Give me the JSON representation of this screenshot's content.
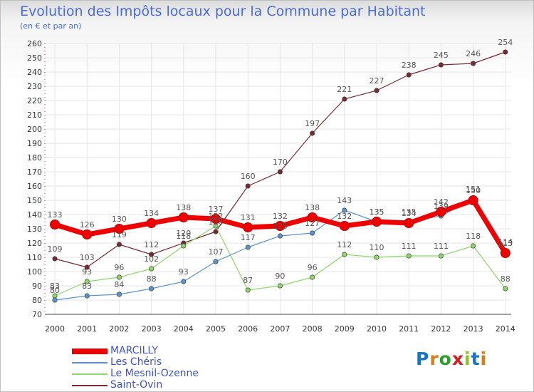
{
  "header": {
    "title": "Evolution des Impôts locaux pour la Commune par Habitant",
    "subtitle": "(en € et par an)"
  },
  "colors": {
    "title": "#4a6cd6",
    "grid": "#e6e6e6",
    "axis_text": "#333333",
    "value_text": "#555555"
  },
  "logo": {
    "letters": [
      "P",
      "r",
      "o",
      "x",
      "i",
      "t",
      "i"
    ],
    "colors": [
      "#1a74c6",
      "#e07b14",
      "#2c9f2c",
      "#d61f1f",
      "#8fbf2a",
      "#1a74c6",
      "#e07b14"
    ]
  },
  "chart_data": {
    "type": "line",
    "title": "Evolution des Impôts locaux pour la Commune par Habitant",
    "subtitle": "(en € et par an)",
    "x": [
      "2000",
      "2001",
      "2002",
      "2003",
      "2004",
      "2005",
      "2006",
      "2007",
      "2008",
      "2009",
      "2010",
      "2011",
      "2012",
      "2013",
      "2014"
    ],
    "ylim": [
      70,
      260
    ],
    "yticks": [
      70,
      80,
      90,
      100,
      110,
      120,
      130,
      140,
      150,
      160,
      170,
      180,
      190,
      200,
      210,
      220,
      230,
      240,
      250,
      260
    ],
    "grid": true,
    "legend_position": "bottom-left",
    "series": [
      {
        "name": "MARCILLY",
        "color": "#ee0000",
        "style": "thick",
        "values": [
          133,
          126,
          130,
          134,
          138,
          137,
          131,
          132,
          138,
          132,
          135,
          134,
          142,
          150,
          113
        ],
        "labels": [
          "133",
          "126",
          "130",
          "134",
          "138",
          "137",
          "131",
          "132",
          "138",
          "132",
          "135",
          "134",
          "142",
          "150",
          "113"
        ]
      },
      {
        "name": "Les Chéris",
        "color": "#5b93cf",
        "style": "thin",
        "values": [
          80,
          83,
          84,
          88,
          93,
          107,
          117,
          125,
          127,
          143,
          135,
          135,
          139,
          151,
          114
        ],
        "labels": [
          "80",
          "83",
          "84",
          "88",
          "93",
          "107",
          "117",
          "125",
          "127",
          "143",
          "135",
          "135",
          "139",
          "151",
          "114"
        ]
      },
      {
        "name": "Le Mesnil-Ozenne",
        "color": "#8fd66a",
        "style": "thin",
        "values": [
          83,
          93,
          96,
          102,
          118,
          132,
          87,
          90,
          96,
          112,
          110,
          111,
          111,
          118,
          88
        ],
        "labels": [
          "83",
          "93",
          "96",
          "102",
          "118",
          "132",
          "87",
          "90",
          "96",
          "112",
          "110",
          "111",
          "111",
          "118",
          "88"
        ]
      },
      {
        "name": "Saint-Ovin",
        "color": "#7a2a30",
        "style": "thin",
        "values": [
          109,
          103,
          119,
          112,
          120,
          128,
          160,
          170,
          197,
          221,
          227,
          238,
          245,
          246,
          254
        ],
        "labels": [
          "109",
          "103",
          "119",
          "112",
          "120",
          "128",
          "160",
          "170",
          "197",
          "221",
          "227",
          "238",
          "245",
          "246",
          "254"
        ]
      }
    ]
  }
}
